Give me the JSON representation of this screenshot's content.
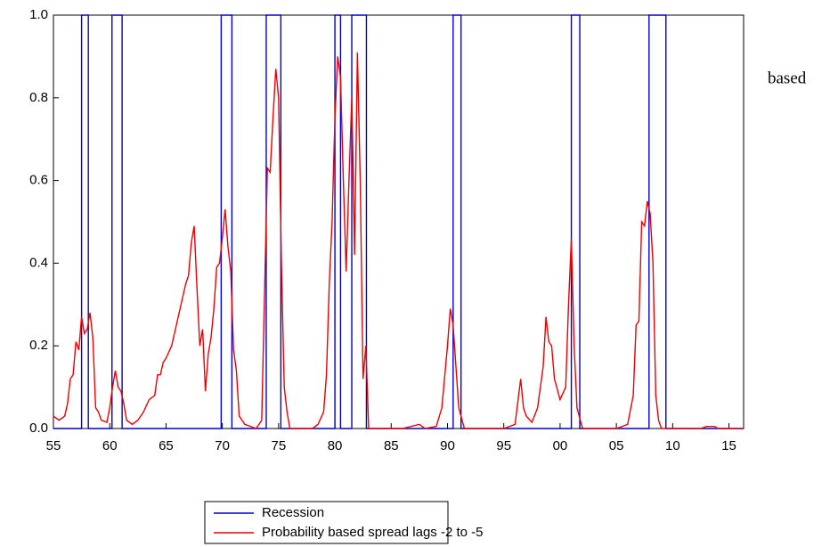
{
  "chart_data": {
    "type": "line",
    "annotation": "based",
    "xlim": [
      1955,
      2016.3
    ],
    "xticks": [
      {
        "value": 1955,
        "label": "55"
      },
      {
        "value": 1960,
        "label": "60"
      },
      {
        "value": 1965,
        "label": "65"
      },
      {
        "value": 1970,
        "label": "70"
      },
      {
        "value": 1975,
        "label": "75"
      },
      {
        "value": 1980,
        "label": "80"
      },
      {
        "value": 1985,
        "label": "85"
      },
      {
        "value": 1990,
        "label": "90"
      },
      {
        "value": 1995,
        "label": "95"
      },
      {
        "value": 2000,
        "label": "00"
      },
      {
        "value": 2005,
        "label": "05"
      },
      {
        "value": 2010,
        "label": "10"
      },
      {
        "value": 2015,
        "label": "15"
      }
    ],
    "ylim": [
      0,
      1
    ],
    "yticks": [
      {
        "value": 0,
        "label": "0.0"
      },
      0.2,
      0.4,
      0.6,
      0.8,
      {
        "value": 1,
        "label": "1.0"
      }
    ],
    "series": [
      {
        "name": "Recession",
        "color": "#0000cc",
        "x": [
          1955,
          1957.5,
          1957.5,
          1958.1,
          1958.1,
          1960.2,
          1960.2,
          1961.1,
          1961.1,
          1969.9,
          1969.9,
          1970.85,
          1970.85,
          1973.9,
          1973.9,
          1975.2,
          1975.2,
          1980.0,
          1980.0,
          1980.5,
          1980.5,
          1981.5,
          1981.5,
          1982.8,
          1982.8,
          1990.5,
          1990.5,
          1991.2,
          1991.2,
          2001.0,
          2001.0,
          2001.75,
          2001.75,
          2007.9,
          2007.9,
          2009.4,
          2009.4,
          2016.3
        ],
        "values": [
          0,
          0,
          1,
          1,
          0,
          0,
          1,
          1,
          0,
          0,
          1,
          1,
          0,
          0,
          1,
          1,
          0,
          0,
          1,
          1,
          0,
          0,
          1,
          1,
          0,
          0,
          1,
          1,
          0,
          0,
          1,
          1,
          0,
          0,
          1,
          1,
          0,
          0
        ]
      },
      {
        "name": "Probability based spread lags -2 to -5",
        "color": "#ee0000",
        "x": [
          1955,
          1955.5,
          1956,
          1956.25,
          1956.5,
          1956.75,
          1957,
          1957.25,
          1957.5,
          1957.75,
          1958,
          1958.25,
          1958.5,
          1958.75,
          1959,
          1959.25,
          1959.75,
          1960,
          1960.25,
          1960.5,
          1960.75,
          1961,
          1961.25,
          1961.5,
          1962,
          1962.5,
          1963,
          1963.5,
          1964,
          1964.25,
          1964.5,
          1964.75,
          1965,
          1965.5,
          1966,
          1966.5,
          1966.75,
          1967,
          1967.25,
          1967.5,
          1967.75,
          1968,
          1968.25,
          1968.5,
          1968.75,
          1969,
          1969.25,
          1969.5,
          1969.75,
          1970,
          1970.25,
          1970.5,
          1970.75,
          1971,
          1971.25,
          1971.5,
          1972,
          1972.5,
          1973,
          1973.5,
          1974,
          1974.25,
          1974.5,
          1974.75,
          1975,
          1975.25,
          1975.5,
          1975.75,
          1976,
          1977,
          1978,
          1978.5,
          1979,
          1979.25,
          1979.5,
          1979.75,
          1980,
          1980.25,
          1980.5,
          1980.75,
          1981,
          1981.25,
          1981.5,
          1981.75,
          1982,
          1982.25,
          1982.5,
          1982.75,
          1983,
          1984,
          1986,
          1987.5,
          1988,
          1989,
          1989.5,
          1990,
          1990.25,
          1990.5,
          1990.75,
          1991,
          1991.5,
          1995,
          1996,
          1996.5,
          1996.75,
          1997,
          1997.5,
          1998,
          1998.5,
          1998.75,
          1999,
          1999.25,
          1999.5,
          2000,
          2000.5,
          2000.75,
          2001,
          2001.25,
          2001.5,
          2002,
          2005,
          2006,
          2006.5,
          2006.75,
          2007,
          2007.25,
          2007.5,
          2007.75,
          2008,
          2008.25,
          2008.5,
          2008.75,
          2009,
          2012.5,
          2013,
          2013.75,
          2014,
          2016.3
        ],
        "values": [
          0.03,
          0.02,
          0.03,
          0.06,
          0.12,
          0.13,
          0.21,
          0.19,
          0.27,
          0.23,
          0.24,
          0.28,
          0.22,
          0.05,
          0.04,
          0.02,
          0.015,
          0.05,
          0.1,
          0.14,
          0.1,
          0.09,
          0.06,
          0.02,
          0.01,
          0.02,
          0.04,
          0.07,
          0.08,
          0.13,
          0.13,
          0.16,
          0.17,
          0.2,
          0.26,
          0.32,
          0.35,
          0.37,
          0.45,
          0.49,
          0.34,
          0.2,
          0.24,
          0.09,
          0.18,
          0.22,
          0.29,
          0.39,
          0.4,
          0.46,
          0.53,
          0.44,
          0.38,
          0.19,
          0.14,
          0.03,
          0.01,
          0.005,
          0.0,
          0.02,
          0.63,
          0.62,
          0.75,
          0.87,
          0.8,
          0.4,
          0.1,
          0.04,
          0.0,
          0.0,
          0.0,
          0.01,
          0.04,
          0.13,
          0.35,
          0.5,
          0.75,
          0.9,
          0.85,
          0.6,
          0.38,
          0.6,
          0.8,
          0.42,
          0.91,
          0.6,
          0.12,
          0.2,
          0.0,
          0.0,
          0.0,
          0.01,
          0.0,
          0.005,
          0.05,
          0.2,
          0.29,
          0.25,
          0.15,
          0.05,
          0.0,
          0.0,
          0.01,
          0.12,
          0.05,
          0.03,
          0.015,
          0.05,
          0.15,
          0.27,
          0.21,
          0.2,
          0.12,
          0.07,
          0.1,
          0.3,
          0.46,
          0.2,
          0.05,
          0.0,
          0.0,
          0.01,
          0.08,
          0.25,
          0.26,
          0.5,
          0.49,
          0.55,
          0.52,
          0.4,
          0.08,
          0.02,
          0.0,
          0.0,
          0.005,
          0.005,
          0.0,
          0.0
        ]
      }
    ]
  }
}
